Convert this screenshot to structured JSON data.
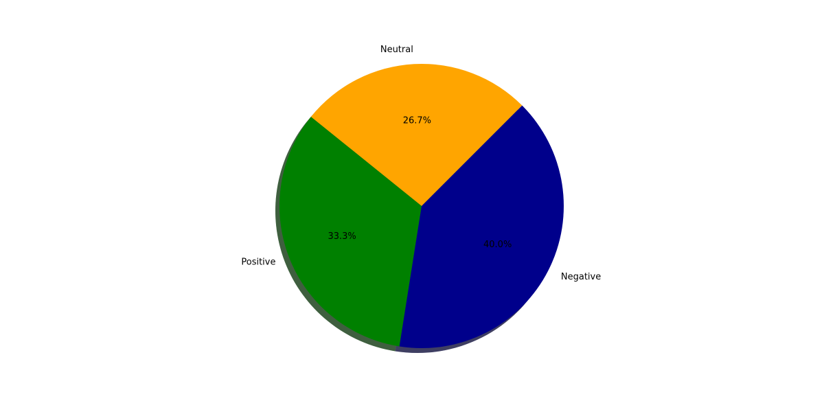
{
  "chart_data": {
    "type": "pie",
    "categories": [
      "Neutral",
      "Positive",
      "Negative"
    ],
    "values": [
      26.7,
      33.3,
      40.0
    ],
    "percent_labels": [
      "26.7%",
      "33.3%",
      "40.0%"
    ],
    "colors": [
      "#ffa500",
      "#008000",
      "#00008b"
    ],
    "shadow": true,
    "title": ""
  }
}
